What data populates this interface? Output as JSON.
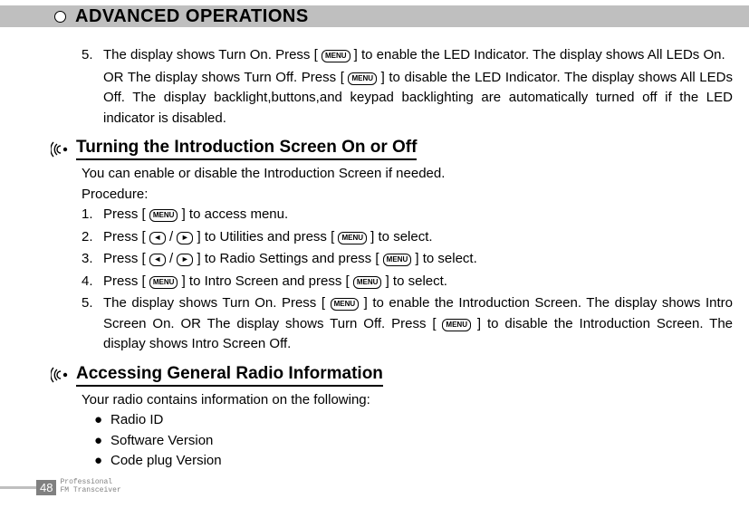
{
  "header": {
    "title": "ADVANCED OPERATIONS"
  },
  "menu_key": "MENU",
  "top_step": {
    "num": "5.",
    "line1a": "The display shows Turn On. Press [ ",
    "line1b": " ] to enable the LED Indicator. The display shows All LEDs On.",
    "line2a": "OR The display shows Turn Off. Press [ ",
    "line2b": " ] to disable the LED Indicator. The display shows All LEDs Off. The  display  backlight,buttons,and keypad backlighting are automatically turned off if the LED indicator is disabled."
  },
  "section1": {
    "title": "Turning the Introduction Screen On or Off",
    "intro": "You can enable or disable the  Introduction Screen if needed.",
    "proc": "Procedure:",
    "steps": [
      {
        "num": "1.",
        "pre": "Press [ ",
        "mid": "",
        "post": " ] to access menu.",
        "type": "menu"
      },
      {
        "num": "2.",
        "pre": "Press [ ",
        "mid": " ] to Utilities and press [ ",
        "post": " ] to select.",
        "type": "arrows-menu"
      },
      {
        "num": "3.",
        "pre": "Press [ ",
        "mid": " ] to Radio Settings and press [ ",
        "post": " ] to select.",
        "type": "arrows-menu"
      },
      {
        "num": "4.",
        "pre": "Press [ ",
        "mid": " ] to Intro Screen and press [ ",
        "post": " ] to select.",
        "type": "menu-menu"
      },
      {
        "num": "5.",
        "pre": "The display shows Turn On. Press [ ",
        "mid": " ] to enable the Introduction Screen. The display shows Intro Screen On. OR The display shows Turn Off. Press [ ",
        "post": " ] to disable the Introduction Screen. The display shows Intro Screen Off.",
        "type": "menu-menu"
      }
    ]
  },
  "section2": {
    "title": "Accessing General Radio Information",
    "intro": "Your radio contains information on the following:",
    "bullets": [
      "Radio ID",
      "Software Version",
      "Code plug Version"
    ]
  },
  "footer": {
    "page": "48",
    "line1": "Professional",
    "line2": "FM Transceiver"
  }
}
